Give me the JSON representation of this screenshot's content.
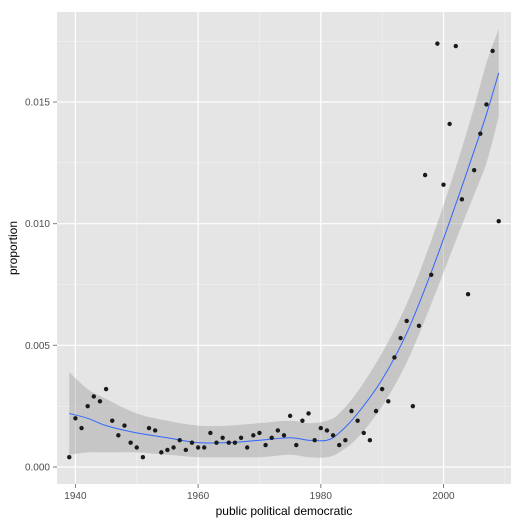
{
  "chart_data": {
    "type": "scatter",
    "title": "",
    "xlabel": "public political democratic",
    "ylabel": "proportion",
    "xlim": [
      1937,
      2011
    ],
    "ylim": [
      -0.0007,
      0.0187
    ],
    "x_ticks": [
      1940,
      1960,
      1980,
      2000
    ],
    "x_tick_labels": [
      "1940",
      "1960",
      "1980",
      "2000"
    ],
    "y_ticks": [
      0,
      0.005,
      0.01,
      0.015
    ],
    "y_tick_labels": [
      "0.000",
      "0.005",
      "0.010",
      "0.015"
    ],
    "grid": true,
    "legend": "none",
    "colors": {
      "panel": "#e5e5e5",
      "grid": "#ffffff",
      "points": "#1a1a1a",
      "smooth_line": "#3366ff",
      "confidence_band": "#999999"
    },
    "points": [
      {
        "x": 1939,
        "y": 0.0004
      },
      {
        "x": 1940,
        "y": 0.002
      },
      {
        "x": 1941,
        "y": 0.0016
      },
      {
        "x": 1942,
        "y": 0.0025
      },
      {
        "x": 1943,
        "y": 0.0029
      },
      {
        "x": 1944,
        "y": 0.0027
      },
      {
        "x": 1945,
        "y": 0.0032
      },
      {
        "x": 1946,
        "y": 0.0019
      },
      {
        "x": 1947,
        "y": 0.0013
      },
      {
        "x": 1948,
        "y": 0.0017
      },
      {
        "x": 1949,
        "y": 0.001
      },
      {
        "x": 1950,
        "y": 0.0008
      },
      {
        "x": 1951,
        "y": 0.0004
      },
      {
        "x": 1952,
        "y": 0.0016
      },
      {
        "x": 1953,
        "y": 0.0015
      },
      {
        "x": 1954,
        "y": 0.0006
      },
      {
        "x": 1955,
        "y": 0.0007
      },
      {
        "x": 1956,
        "y": 0.0008
      },
      {
        "x": 1957,
        "y": 0.0011
      },
      {
        "x": 1958,
        "y": 0.0007
      },
      {
        "x": 1959,
        "y": 0.001
      },
      {
        "x": 1960,
        "y": 0.0008
      },
      {
        "x": 1961,
        "y": 0.0008
      },
      {
        "x": 1962,
        "y": 0.0014
      },
      {
        "x": 1963,
        "y": 0.001
      },
      {
        "x": 1964,
        "y": 0.0012
      },
      {
        "x": 1965,
        "y": 0.001
      },
      {
        "x": 1966,
        "y": 0.001
      },
      {
        "x": 1967,
        "y": 0.0012
      },
      {
        "x": 1968,
        "y": 0.0008
      },
      {
        "x": 1969,
        "y": 0.0013
      },
      {
        "x": 1970,
        "y": 0.0014
      },
      {
        "x": 1971,
        "y": 0.0009
      },
      {
        "x": 1972,
        "y": 0.0012
      },
      {
        "x": 1973,
        "y": 0.0015
      },
      {
        "x": 1974,
        "y": 0.0013
      },
      {
        "x": 1975,
        "y": 0.0021
      },
      {
        "x": 1976,
        "y": 0.0009
      },
      {
        "x": 1977,
        "y": 0.0019
      },
      {
        "x": 1978,
        "y": 0.0022
      },
      {
        "x": 1979,
        "y": 0.0011
      },
      {
        "x": 1980,
        "y": 0.0016
      },
      {
        "x": 1981,
        "y": 0.0015
      },
      {
        "x": 1982,
        "y": 0.0013
      },
      {
        "x": 1983,
        "y": 0.0009
      },
      {
        "x": 1984,
        "y": 0.0011
      },
      {
        "x": 1985,
        "y": 0.0023
      },
      {
        "x": 1986,
        "y": 0.0019
      },
      {
        "x": 1987,
        "y": 0.0014
      },
      {
        "x": 1988,
        "y": 0.0011
      },
      {
        "x": 1989,
        "y": 0.0023
      },
      {
        "x": 1990,
        "y": 0.0032
      },
      {
        "x": 1991,
        "y": 0.0027
      },
      {
        "x": 1992,
        "y": 0.0045
      },
      {
        "x": 1993,
        "y": 0.0053
      },
      {
        "x": 1994,
        "y": 0.006
      },
      {
        "x": 1995,
        "y": 0.0025
      },
      {
        "x": 1996,
        "y": 0.0058
      },
      {
        "x": 1997,
        "y": 0.012
      },
      {
        "x": 1998,
        "y": 0.0079
      },
      {
        "x": 1999,
        "y": 0.0174
      },
      {
        "x": 2000,
        "y": 0.0116
      },
      {
        "x": 2001,
        "y": 0.0141
      },
      {
        "x": 2002,
        "y": 0.0173
      },
      {
        "x": 2003,
        "y": 0.011
      },
      {
        "x": 2004,
        "y": 0.0071
      },
      {
        "x": 2005,
        "y": 0.0122
      },
      {
        "x": 2006,
        "y": 0.0137
      },
      {
        "x": 2007,
        "y": 0.0149
      },
      {
        "x": 2008,
        "y": 0.0171
      },
      {
        "x": 2009,
        "y": 0.0101
      }
    ],
    "smooth": [
      {
        "x": 1939,
        "y": 0.0022,
        "lo": 0.0005,
        "hi": 0.0039
      },
      {
        "x": 1942,
        "y": 0.002,
        "lo": 0.0006,
        "hi": 0.0032
      },
      {
        "x": 1945,
        "y": 0.0017,
        "lo": 0.0006,
        "hi": 0.0028
      },
      {
        "x": 1950,
        "y": 0.0014,
        "lo": 0.0006,
        "hi": 0.0022
      },
      {
        "x": 1955,
        "y": 0.0012,
        "lo": 0.0005,
        "hi": 0.0019
      },
      {
        "x": 1960,
        "y": 0.001,
        "lo": 0.0004,
        "hi": 0.0017
      },
      {
        "x": 1965,
        "y": 0.001,
        "lo": 0.0004,
        "hi": 0.0017
      },
      {
        "x": 1970,
        "y": 0.0011,
        "lo": 0.0004,
        "hi": 0.0018
      },
      {
        "x": 1975,
        "y": 0.0012,
        "lo": 0.0005,
        "hi": 0.0019
      },
      {
        "x": 1978,
        "y": 0.0011,
        "lo": 0.0004,
        "hi": 0.0018
      },
      {
        "x": 1981,
        "y": 0.0011,
        "lo": 0.0004,
        "hi": 0.0019
      },
      {
        "x": 1983,
        "y": 0.0014,
        "lo": 0.0006,
        "hi": 0.0022
      },
      {
        "x": 1986,
        "y": 0.0022,
        "lo": 0.0012,
        "hi": 0.0031
      },
      {
        "x": 1990,
        "y": 0.0036,
        "lo": 0.0025,
        "hi": 0.0047
      },
      {
        "x": 1994,
        "y": 0.0055,
        "lo": 0.0043,
        "hi": 0.0067
      },
      {
        "x": 1998,
        "y": 0.008,
        "lo": 0.0067,
        "hi": 0.0093
      },
      {
        "x": 2002,
        "y": 0.0108,
        "lo": 0.0093,
        "hi": 0.0123
      },
      {
        "x": 2005,
        "y": 0.013,
        "lo": 0.0112,
        "hi": 0.0148
      },
      {
        "x": 2007,
        "y": 0.0145,
        "lo": 0.0125,
        "hi": 0.0166
      },
      {
        "x": 2009,
        "y": 0.0162,
        "lo": 0.0144,
        "hi": 0.018
      }
    ]
  }
}
